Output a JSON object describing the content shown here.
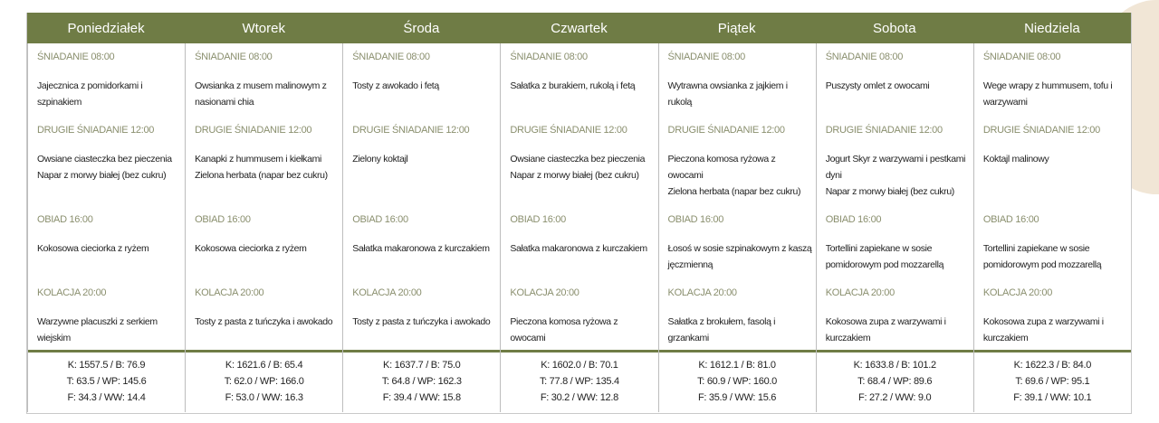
{
  "colors": {
    "header": "#6f7c45",
    "label": "#8a8f6e",
    "decoration": "#f1e6d6"
  },
  "days": [
    {
      "name": "Poniedziałek",
      "meals": [
        {
          "label": "ŚNIADANIE 08:00",
          "items": [
            "Jajecznica z pomidorkami i szpinakiem"
          ]
        },
        {
          "label": "DRUGIE ŚNIADANIE 12:00",
          "items": [
            "Owsiane ciasteczka bez pieczenia",
            "Napar z morwy białej (bez cukru)"
          ]
        },
        {
          "label": "OBIAD 16:00",
          "items": [
            "Kokosowa cieciorka z ryżem"
          ]
        },
        {
          "label": "KOLACJA 20:00",
          "items": [
            "Warzywne placuszki z serkiem wiejskim"
          ]
        }
      ],
      "totals": [
        "K: 1557.5 / B: 76.9",
        "T: 63.5 / WP: 145.6",
        "F: 34.3 / WW: 14.4"
      ]
    },
    {
      "name": "Wtorek",
      "meals": [
        {
          "label": "ŚNIADANIE 08:00",
          "items": [
            "Owsianka z musem malinowym z nasionami chia"
          ]
        },
        {
          "label": "DRUGIE ŚNIADANIE 12:00",
          "items": [
            "Kanapki z hummusem i kiełkami",
            "Zielona herbata (napar bez cukru)"
          ]
        },
        {
          "label": "OBIAD 16:00",
          "items": [
            "Kokosowa cieciorka z ryżem"
          ]
        },
        {
          "label": "KOLACJA 20:00",
          "items": [
            "Tosty z pasta z tuńczyka i awokado"
          ]
        }
      ],
      "totals": [
        "K: 1621.6 / B: 65.4",
        "T: 62.0 / WP: 166.0",
        "F: 53.0 / WW: 16.3"
      ]
    },
    {
      "name": "Środa",
      "meals": [
        {
          "label": "ŚNIADANIE 08:00",
          "items": [
            "Tosty z awokado i fetą"
          ]
        },
        {
          "label": "DRUGIE ŚNIADANIE 12:00",
          "items": [
            "Zielony koktajl"
          ]
        },
        {
          "label": "OBIAD 16:00",
          "items": [
            "Sałatka makaronowa z kurczakiem"
          ]
        },
        {
          "label": "KOLACJA 20:00",
          "items": [
            "Tosty z pasta z tuńczyka i awokado"
          ]
        }
      ],
      "totals": [
        "K: 1637.7 / B: 75.0",
        "T: 64.8 / WP: 162.3",
        "F: 39.4 / WW: 15.8"
      ]
    },
    {
      "name": "Czwartek",
      "meals": [
        {
          "label": "ŚNIADANIE 08:00",
          "items": [
            "Sałatka z burakiem, rukolą i fetą"
          ]
        },
        {
          "label": "DRUGIE ŚNIADANIE 12:00",
          "items": [
            "Owsiane ciasteczka bez pieczenia",
            "Napar z morwy białej (bez cukru)"
          ]
        },
        {
          "label": "OBIAD 16:00",
          "items": [
            "Sałatka makaronowa z kurczakiem"
          ]
        },
        {
          "label": "KOLACJA 20:00",
          "items": [
            "Pieczona komosa ryżowa z owocami"
          ]
        }
      ],
      "totals": [
        "K: 1602.0 / B: 70.1",
        "T: 77.8 / WP: 135.4",
        "F: 30.2 / WW: 12.8"
      ]
    },
    {
      "name": "Piątek",
      "meals": [
        {
          "label": "ŚNIADANIE 08:00",
          "items": [
            "Wytrawna owsianka z jajkiem i rukolą"
          ]
        },
        {
          "label": "DRUGIE ŚNIADANIE 12:00",
          "items": [
            "Pieczona komosa ryżowa z owocami",
            "Zielona herbata (napar bez cukru)"
          ]
        },
        {
          "label": "OBIAD 16:00",
          "items": [
            "Łosoś w sosie szpinakowym z kaszą jęczmienną"
          ]
        },
        {
          "label": "KOLACJA 20:00",
          "items": [
            "Sałatka z brokułem, fasolą i grzankami"
          ]
        }
      ],
      "totals": [
        "K: 1612.1 / B: 81.0",
        "T: 60.9 / WP: 160.0",
        "F: 35.9 / WW: 15.6"
      ]
    },
    {
      "name": "Sobota",
      "meals": [
        {
          "label": "ŚNIADANIE 08:00",
          "items": [
            "Puszysty omlet z owocami"
          ]
        },
        {
          "label": "DRUGIE ŚNIADANIE 12:00",
          "items": [
            "Jogurt Skyr z warzywami i pestkami dyni",
            "Napar z morwy białej (bez cukru)"
          ]
        },
        {
          "label": "OBIAD 16:00",
          "items": [
            "Tortellini zapiekane w sosie pomidorowym pod mozzarellą"
          ]
        },
        {
          "label": "KOLACJA 20:00",
          "items": [
            "Kokosowa zupa z warzywami i kurczakiem"
          ]
        }
      ],
      "totals": [
        "K: 1633.8 / B: 101.2",
        "T: 68.4 / WP: 89.6",
        "F: 27.2 / WW: 9.0"
      ]
    },
    {
      "name": "Niedziela",
      "meals": [
        {
          "label": "ŚNIADANIE 08:00",
          "items": [
            "Wege wrapy z hummusem, tofu i warzywami"
          ]
        },
        {
          "label": "DRUGIE ŚNIADANIE 12:00",
          "items": [
            "Koktajl malinowy"
          ]
        },
        {
          "label": "OBIAD 16:00",
          "items": [
            "Tortellini zapiekane w sosie pomidorowym pod mozzarellą"
          ]
        },
        {
          "label": "KOLACJA 20:00",
          "items": [
            "Kokosowa zupa z warzywami i kurczakiem"
          ]
        }
      ],
      "totals": [
        "K: 1622.3 / B: 84.0",
        "T: 69.6 / WP: 95.1",
        "F: 39.1 / WW: 10.1"
      ]
    }
  ]
}
